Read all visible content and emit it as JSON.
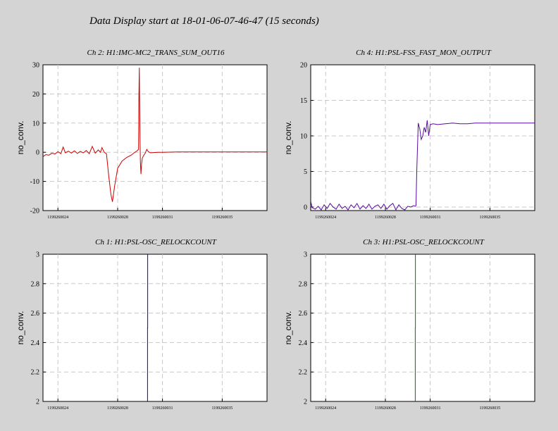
{
  "page": {
    "title": "Data Display start at 18-01-06-07-46-47 (15 seconds)"
  },
  "colors": {
    "background": "#d4d4d4",
    "plot_background": "#ffffff",
    "grid": "#c8c8c8"
  },
  "chart_data": [
    {
      "type": "line",
      "title": "Ch 2: H1:IMC-MC2_TRANS_SUM_OUT16",
      "ylabel": "no_conv.",
      "xlabel": "",
      "xlim": [
        1199260023,
        1199260038
      ],
      "ylim": [
        -20,
        30
      ],
      "yticks": [
        "30",
        "20",
        "10",
        "0",
        "-10",
        "-20"
      ],
      "ytick_values": [
        30,
        20,
        10,
        0,
        -10,
        -20
      ],
      "xticks": [
        "1199260024",
        "1199260028",
        "1199260031",
        "1199260035"
      ],
      "xtick_values": [
        1199260024,
        1199260028,
        1199260031,
        1199260035
      ],
      "grid": true,
      "series": [
        {
          "color": "#cc0000",
          "x": [
            1199260023.0,
            1199260023.2,
            1199260023.4,
            1199260023.6,
            1199260023.8,
            1199260024.0,
            1199260024.2,
            1199260024.35,
            1199260024.5,
            1199260024.7,
            1199260024.9,
            1199260025.1,
            1199260025.3,
            1199260025.5,
            1199260025.7,
            1199260025.9,
            1199260026.1,
            1199260026.3,
            1199260026.5,
            1199260026.7,
            1199260026.85,
            1199260026.95,
            1199260027.1,
            1199260027.25,
            1199260027.4,
            1199260027.55,
            1199260027.65,
            1199260027.8,
            1199260028.0,
            1199260028.3,
            1199260028.6,
            1199260028.9,
            1199260029.1,
            1199260029.3,
            1199260029.4,
            1199260029.42,
            1199260029.45,
            1199260029.48,
            1199260029.52,
            1199260029.56,
            1199260029.6,
            1199260029.65,
            1199260029.75,
            1199260029.85,
            1199260029.95,
            1199260030.05,
            1199260030.2,
            1199260030.4,
            1199260030.7,
            1199260031.0,
            1199260032.0,
            1199260033.0,
            1199260034.0,
            1199260035.0,
            1199260036.0,
            1199260037.0,
            1199260038.0
          ],
          "y": [
            -1.5,
            -0.8,
            -1.0,
            -0.3,
            -0.6,
            0.2,
            -0.5,
            1.8,
            -0.2,
            0.4,
            -0.3,
            0.5,
            -0.4,
            0.3,
            -0.2,
            0.6,
            -0.5,
            2.0,
            -0.3,
            0.8,
            0.0,
            1.6,
            0.0,
            -0.5,
            -8.0,
            -14.5,
            -17.0,
            -11.5,
            -5.5,
            -3.0,
            -1.8,
            -1.0,
            -0.2,
            0.5,
            1.0,
            18.0,
            29.0,
            12.0,
            -3.0,
            -7.5,
            -4.0,
            -2.0,
            -1.0,
            -0.3,
            1.0,
            0.2,
            -0.2,
            -0.1,
            0.0,
            0.0,
            0.1,
            0.1,
            0.1,
            0.1,
            0.1,
            0.1,
            0.1
          ]
        }
      ]
    },
    {
      "type": "line",
      "title": "Ch 4: H1:PSL-FSS_FAST_MON_OUTPUT",
      "ylabel": "no_conv.",
      "xlabel": "",
      "xlim": [
        1199260023,
        1199260038
      ],
      "ylim": [
        -0.5,
        20
      ],
      "yticks": [
        "20",
        "15",
        "10",
        "5",
        "0"
      ],
      "ytick_values": [
        20,
        15,
        10,
        5,
        0
      ],
      "xticks": [
        "1199260024",
        "1199260028",
        "1199260031",
        "1199260035"
      ],
      "xtick_values": [
        1199260024,
        1199260028,
        1199260031,
        1199260035
      ],
      "grid": true,
      "series": [
        {
          "color": "#5a0aa0",
          "x": [
            1199260023.0,
            1199260023.1,
            1199260023.3,
            1199260023.5,
            1199260023.7,
            1199260023.9,
            1199260024.1,
            1199260024.3,
            1199260024.5,
            1199260024.7,
            1199260024.9,
            1199260025.1,
            1199260025.3,
            1199260025.5,
            1199260025.7,
            1199260025.9,
            1199260026.1,
            1199260026.3,
            1199260026.5,
            1199260026.7,
            1199260026.9,
            1199260027.1,
            1199260027.3,
            1199260027.5,
            1199260027.7,
            1199260027.9,
            1199260028.1,
            1199260028.3,
            1199260028.5,
            1199260028.7,
            1199260028.9,
            1199260029.1,
            1199260029.3,
            1199260029.5,
            1199260029.7,
            1199260029.9,
            1199260030.0,
            1199260030.05,
            1199260030.1,
            1199260030.2,
            1199260030.3,
            1199260030.4,
            1199260030.5,
            1199260030.6,
            1199260030.7,
            1199260030.8,
            1199260030.9,
            1199260031.0,
            1199260031.2,
            1199260031.5,
            1199260032.0,
            1199260032.5,
            1199260033.0,
            1199260033.5,
            1199260034.0,
            1199260034.5,
            1199260035.0,
            1199260035.5,
            1199260036.0,
            1199260037.0,
            1199260038.0
          ],
          "y": [
            0.8,
            -0.1,
            -0.3,
            0.1,
            -0.4,
            0.3,
            -0.2,
            0.5,
            0.0,
            -0.3,
            0.4,
            -0.2,
            0.1,
            -0.4,
            0.3,
            -0.1,
            0.5,
            -0.3,
            0.2,
            -0.2,
            0.4,
            -0.3,
            0.1,
            0.3,
            -0.2,
            0.4,
            -0.3,
            0.2,
            0.5,
            -0.4,
            0.3,
            -0.2,
            -0.4,
            0.1,
            0.0,
            0.2,
            0.1,
            0.2,
            5.0,
            11.8,
            11.0,
            9.5,
            10.0,
            11.2,
            10.5,
            12.2,
            10.0,
            11.6,
            11.7,
            11.6,
            11.7,
            11.8,
            11.7,
            11.7,
            11.8,
            11.8,
            11.8,
            11.8,
            11.8,
            11.8,
            11.8
          ]
        }
      ]
    },
    {
      "type": "line",
      "title": "Ch 1: H1:PSL-OSC_RELOCKCOUNT",
      "ylabel": "no_conv.",
      "xlabel": "",
      "xlim": [
        1199260023,
        1199260038
      ],
      "ylim": [
        2,
        3
      ],
      "yticks": [
        "3",
        "2.8",
        "2.6",
        "2.4",
        "2.2",
        "2"
      ],
      "ytick_values": [
        3,
        2.8,
        2.6,
        2.4,
        2.2,
        2
      ],
      "xticks": [
        "1199260024",
        "1199260028",
        "1199260031",
        "1199260035"
      ],
      "xtick_values": [
        1199260024,
        1199260028,
        1199260031,
        1199260035
      ],
      "grid": true,
      "series": [
        {
          "color": "#0000cc",
          "x": [
            1199260030.0,
            1199260030.0,
            1199260030.01,
            1199260030.01
          ],
          "y": [
            2.0,
            2.5,
            2.5,
            3.0
          ]
        }
      ]
    },
    {
      "type": "line",
      "title": "Ch 3: H1:PSL-OSC_RELOCKCOUNT",
      "ylabel": "no_conv.",
      "xlabel": "",
      "xlim": [
        1199260023,
        1199260038
      ],
      "ylim": [
        2,
        3
      ],
      "yticks": [
        "3",
        "2.8",
        "2.6",
        "2.4",
        "2.2",
        "2"
      ],
      "ytick_values": [
        3,
        2.8,
        2.6,
        2.4,
        2.2,
        2
      ],
      "xticks": [
        "1199260024",
        "1199260028",
        "1199260031",
        "1199260035"
      ],
      "xtick_values": [
        1199260024,
        1199260028,
        1199260031,
        1199260035
      ],
      "grid": true,
      "series": [
        {
          "color": "#007700",
          "x": [
            1199260030.0,
            1199260030.0,
            1199260030.01,
            1199260030.01
          ],
          "y": [
            2.0,
            2.5,
            2.5,
            3.0
          ]
        }
      ]
    }
  ]
}
